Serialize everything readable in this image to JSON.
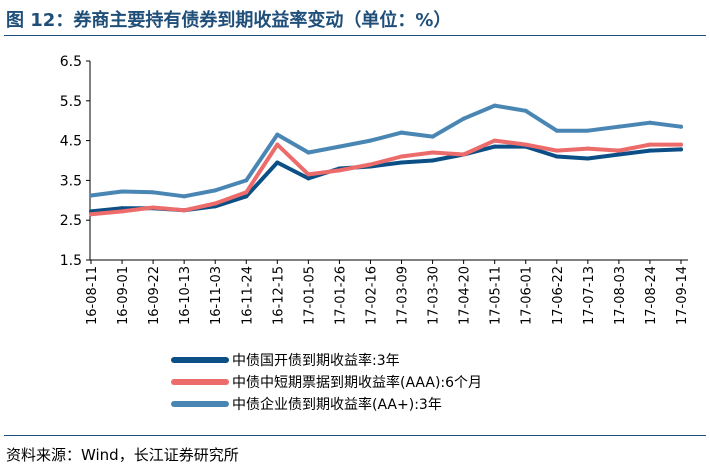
{
  "figure": {
    "title": "图 12：券商主要持有债券到期收益率变动（单位：%）",
    "source": "资料来源：Wind，长江证券研究所"
  },
  "chart_data": {
    "type": "line",
    "title": "券商主要持有债券到期收益率变动（单位：%）",
    "xlabel": "",
    "ylabel": "",
    "ylim": [
      1.5,
      6.5
    ],
    "yticks": [
      1.5,
      2.5,
      3.5,
      4.5,
      5.5,
      6.5
    ],
    "legend_position": "bottom",
    "grid": false,
    "categories": [
      "16-08-11",
      "16-09-01",
      "16-09-22",
      "16-10-13",
      "16-11-03",
      "16-11-24",
      "16-12-15",
      "17-01-05",
      "17-01-26",
      "17-02-16",
      "17-03-09",
      "17-03-30",
      "17-04-20",
      "17-05-11",
      "17-06-01",
      "17-06-22",
      "17-07-13",
      "17-08-03",
      "17-08-24",
      "17-09-14"
    ],
    "series": [
      {
        "name": "中债国开债到期收益率:3年",
        "color": "#0b4f86",
        "values": [
          2.72,
          2.8,
          2.8,
          2.75,
          2.85,
          3.1,
          3.95,
          3.55,
          3.8,
          3.85,
          3.95,
          4.0,
          4.15,
          4.35,
          4.35,
          4.1,
          4.05,
          4.15,
          4.25,
          4.28
        ]
      },
      {
        "name": "中债中短期票据到期收益率(AAA):6个月",
        "color": "#ec6b6b",
        "values": [
          2.65,
          2.72,
          2.82,
          2.75,
          2.92,
          3.2,
          4.4,
          3.65,
          3.75,
          3.9,
          4.1,
          4.2,
          4.15,
          4.5,
          4.4,
          4.25,
          4.3,
          4.25,
          4.4,
          4.4
        ]
      },
      {
        "name": "中债企业债到期收益率(AA+):3年",
        "color": "#4a86b4",
        "values": [
          3.12,
          3.22,
          3.2,
          3.1,
          3.25,
          3.5,
          4.65,
          4.2,
          4.35,
          4.5,
          4.7,
          4.6,
          5.05,
          5.38,
          5.25,
          4.75,
          4.75,
          4.85,
          4.95,
          4.85
        ]
      }
    ]
  }
}
